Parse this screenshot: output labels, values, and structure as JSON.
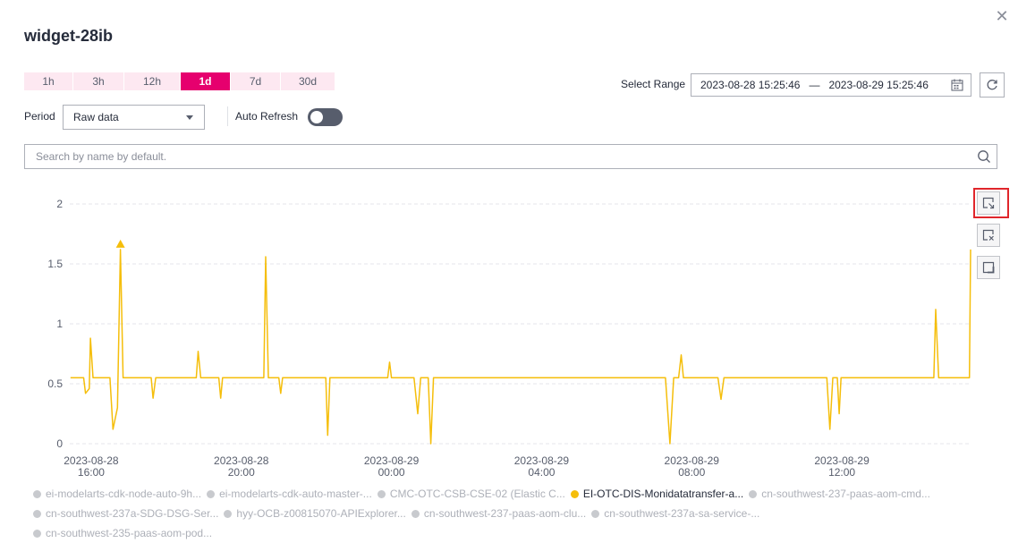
{
  "dialog": {
    "title": "widget-28ib",
    "close_icon": "close-icon"
  },
  "time_ranges": [
    {
      "label": "1h",
      "active": false
    },
    {
      "label": "3h",
      "active": false
    },
    {
      "label": "12h",
      "active": false
    },
    {
      "label": "1d",
      "active": true
    },
    {
      "label": "7d",
      "active": false
    },
    {
      "label": "30d",
      "active": false
    }
  ],
  "select_range": {
    "label": "Select Range",
    "start": "2023-08-28 15:25:46",
    "separator": "—",
    "end": "2023-08-29 15:25:46"
  },
  "period": {
    "label": "Period",
    "value": "Raw data"
  },
  "auto_refresh": {
    "label": "Auto Refresh",
    "on": false
  },
  "search": {
    "placeholder": "Search by name by default.",
    "value": ""
  },
  "colors": {
    "accent": "#e6006e",
    "series": "#f5be0b",
    "inactive_legend": "#c8cace",
    "highlight_border": "#e0262b"
  },
  "chart_data": {
    "type": "line",
    "y_ticks": [
      "2",
      "1.5",
      "1",
      "0.5",
      "0"
    ],
    "ylim": [
      0,
      2
    ],
    "x_tick_labels": [
      [
        "2023-08-28",
        "16:00"
      ],
      [
        "2023-08-28",
        "20:00"
      ],
      [
        "2023-08-29",
        "00:00"
      ],
      [
        "2023-08-29",
        "04:00"
      ],
      [
        "2023-08-29",
        "08:00"
      ],
      [
        "2023-08-29",
        "12:00"
      ]
    ],
    "x_start_hour": 15.43,
    "x_end_hour": 39.43,
    "x_tick_hours": [
      16,
      20,
      24,
      28,
      32,
      36
    ],
    "grid": true,
    "series": [
      {
        "name": "EI-OTC-DIS-Monidatatransfer-a...",
        "baseline": 0.55,
        "points": [
          [
            15.45,
            0.55
          ],
          [
            15.8,
            0.55
          ],
          [
            15.85,
            0.42
          ],
          [
            15.95,
            0.46
          ],
          [
            15.98,
            0.88
          ],
          [
            16.05,
            0.55
          ],
          [
            16.5,
            0.55
          ],
          [
            16.58,
            0.12
          ],
          [
            16.7,
            0.3
          ],
          [
            16.78,
            1.62
          ],
          [
            16.85,
            0.55
          ],
          [
            17.6,
            0.55
          ],
          [
            17.65,
            0.38
          ],
          [
            17.72,
            0.55
          ],
          [
            18.8,
            0.55
          ],
          [
            18.85,
            0.77
          ],
          [
            18.92,
            0.55
          ],
          [
            19.4,
            0.55
          ],
          [
            19.45,
            0.38
          ],
          [
            19.5,
            0.55
          ],
          [
            20.6,
            0.55
          ],
          [
            20.65,
            1.56
          ],
          [
            20.72,
            0.55
          ],
          [
            21.0,
            0.55
          ],
          [
            21.05,
            0.42
          ],
          [
            21.1,
            0.55
          ],
          [
            22.25,
            0.55
          ],
          [
            22.3,
            0.07
          ],
          [
            22.36,
            0.55
          ],
          [
            23.9,
            0.55
          ],
          [
            23.95,
            0.68
          ],
          [
            24.0,
            0.55
          ],
          [
            24.6,
            0.55
          ],
          [
            24.7,
            0.25
          ],
          [
            24.78,
            0.55
          ],
          [
            24.98,
            0.55
          ],
          [
            25.05,
            0.0
          ],
          [
            25.12,
            0.55
          ],
          [
            31.3,
            0.55
          ],
          [
            31.42,
            0.0
          ],
          [
            31.52,
            0.55
          ],
          [
            31.65,
            0.55
          ],
          [
            31.72,
            0.74
          ],
          [
            31.78,
            0.55
          ],
          [
            32.7,
            0.55
          ],
          [
            32.78,
            0.37
          ],
          [
            32.86,
            0.55
          ],
          [
            35.6,
            0.55
          ],
          [
            35.68,
            0.12
          ],
          [
            35.76,
            0.55
          ],
          [
            35.88,
            0.55
          ],
          [
            35.93,
            0.25
          ],
          [
            35.98,
            0.55
          ],
          [
            38.45,
            0.55
          ],
          [
            38.5,
            1.12
          ],
          [
            38.58,
            0.55
          ],
          [
            39.4,
            0.55
          ],
          [
            39.43,
            1.62
          ]
        ]
      }
    ],
    "marker": {
      "hour": 16.78,
      "value": 1.62,
      "shape": "triangle"
    }
  },
  "side_tools": [
    {
      "name": "zoom-select-icon"
    },
    {
      "name": "zoom-reset-icon"
    },
    {
      "name": "fullscreen-icon"
    }
  ],
  "legend": [
    {
      "label": "ei-modelarts-cdk-node-auto-9h...",
      "active": false
    },
    {
      "label": "ei-modelarts-cdk-auto-master-...",
      "active": false
    },
    {
      "label": "CMC-OTC-CSB-CSE-02 (Elastic C...",
      "active": false
    },
    {
      "label": "EI-OTC-DIS-Monidatatransfer-a...",
      "active": true
    },
    {
      "label": "cn-southwest-237-paas-aom-cmd...",
      "active": false
    },
    {
      "label": "cn-southwest-237a-SDG-DSG-Ser...",
      "active": false
    },
    {
      "label": "hyy-OCB-z00815070-APIExplorer...",
      "active": false
    },
    {
      "label": "cn-southwest-237-paas-aom-clu...",
      "active": false
    },
    {
      "label": "cn-southwest-237a-sa-service-...",
      "active": false
    },
    {
      "label": "cn-southwest-235-paas-aom-pod...",
      "active": false
    }
  ]
}
